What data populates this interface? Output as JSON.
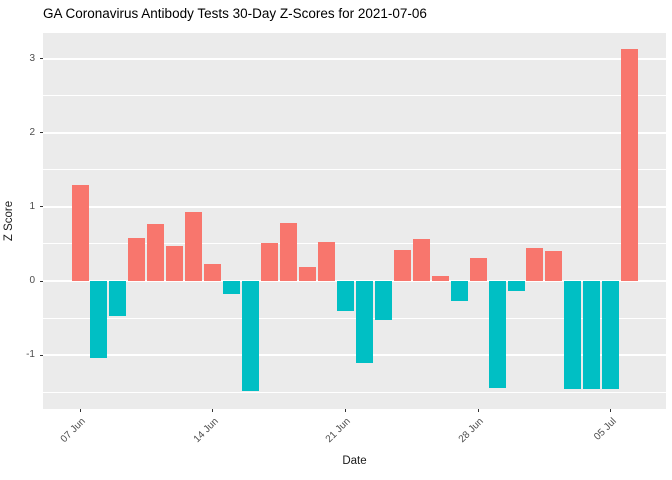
{
  "chart_data": {
    "type": "bar",
    "title": "GA Coronavirus Antibody Tests 30-Day Z-Scores for 2021-07-06",
    "xlabel": "Date",
    "ylabel": "Z Score",
    "ylim": [
      -1.725,
      3.345
    ],
    "y_major_ticks": [
      3,
      2,
      1,
      0,
      -1
    ],
    "y_minor_ticks": [
      2.5,
      1.5,
      0.5,
      -0.5,
      -1.5
    ],
    "x_tick_labels": [
      "07 Jun",
      "14 Jun",
      "21 Jun",
      "28 Jun",
      "05 Jul"
    ],
    "x_tick_day_index": [
      0,
      7,
      14,
      21,
      28
    ],
    "grid": "on",
    "legend": "none",
    "categories": [
      "2021-06-07",
      "2021-06-08",
      "2021-06-09",
      "2021-06-10",
      "2021-06-11",
      "2021-06-12",
      "2021-06-13",
      "2021-06-14",
      "2021-06-15",
      "2021-06-16",
      "2021-06-17",
      "2021-06-18",
      "2021-06-19",
      "2021-06-20",
      "2021-06-21",
      "2021-06-22",
      "2021-06-23",
      "2021-06-24",
      "2021-06-25",
      "2021-06-26",
      "2021-06-27",
      "2021-06-28",
      "2021-06-29",
      "2021-06-30",
      "2021-07-01",
      "2021-07-02",
      "2021-07-03",
      "2021-07-04",
      "2021-07-05",
      "2021-07-06"
    ],
    "values": [
      1.29,
      -1.04,
      -0.47,
      0.58,
      0.77,
      0.47,
      0.93,
      0.23,
      -0.18,
      -1.48,
      0.52,
      0.78,
      0.19,
      0.53,
      -0.4,
      -1.1,
      -0.53,
      0.42,
      0.57,
      0.07,
      -0.27,
      0.31,
      -1.44,
      -0.14,
      0.45,
      0.41,
      -1.45,
      -1.45,
      -1.45,
      3.13
    ]
  },
  "colors": {
    "positive_bar": "#F8766D",
    "negative_bar": "#00BFC4",
    "panel_background": "#EBEBEB",
    "gridline": "#FFFFFF",
    "tick_text": "#4D4D4D",
    "title_text": "#000000"
  }
}
